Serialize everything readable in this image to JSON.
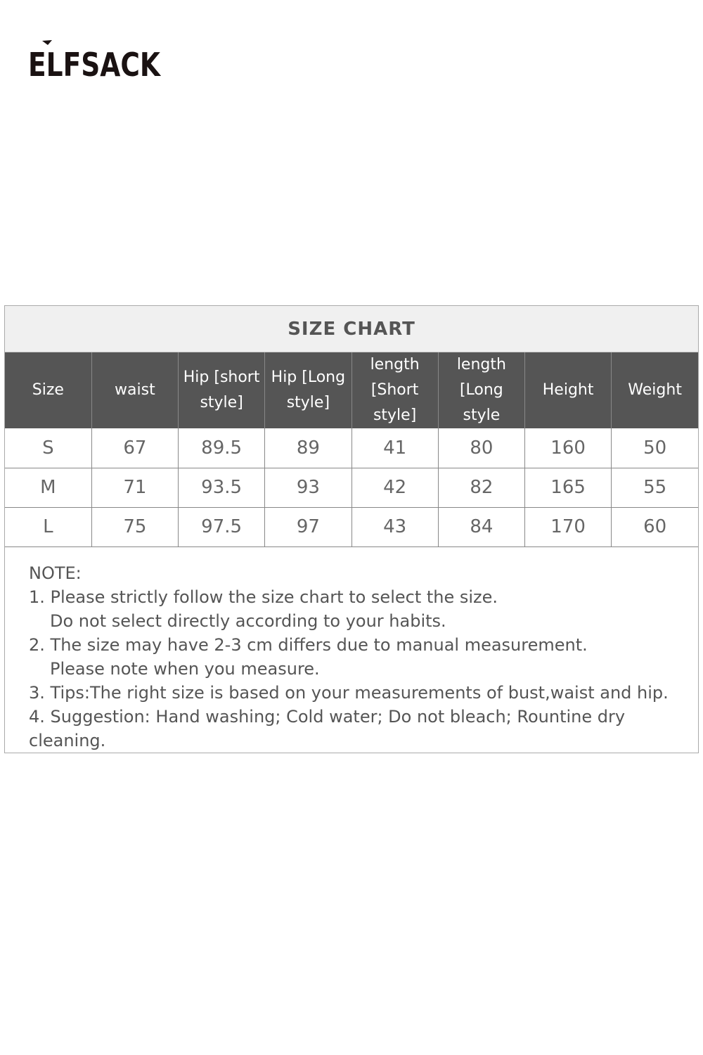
{
  "brand": {
    "logo_text": "ELFSACK"
  },
  "size_chart": {
    "title": "SIZE CHART",
    "columns": [
      "Size",
      "waist",
      "Hip [short style]",
      "Hip  [Long style]",
      "length [Short style]",
      "length [Long style",
      "Height",
      "Weight"
    ],
    "rows": [
      [
        "S",
        "67",
        "89.5",
        "89",
        "41",
        "80",
        "160",
        "50"
      ],
      [
        "M",
        "71",
        "93.5",
        "93",
        "42",
        "82",
        "165",
        "55"
      ],
      [
        "L",
        "75",
        "97.5",
        "97",
        "43",
        "84",
        "170",
        "60"
      ]
    ]
  },
  "note": {
    "heading": "NOTE:",
    "lines": [
      "1. Please strictly follow the size chart to select the size.",
      "Do not select directly according to your habits.",
      "2. The size may have 2-3 cm differs due to manual measurement.",
      "Please note when you measure.",
      "3. Tips:The right size is based on your measurements of bust,waist and hip.",
      "4. Suggestion: Hand washing; Cold water; Do not bleach; Rountine dry cleaning."
    ]
  }
}
